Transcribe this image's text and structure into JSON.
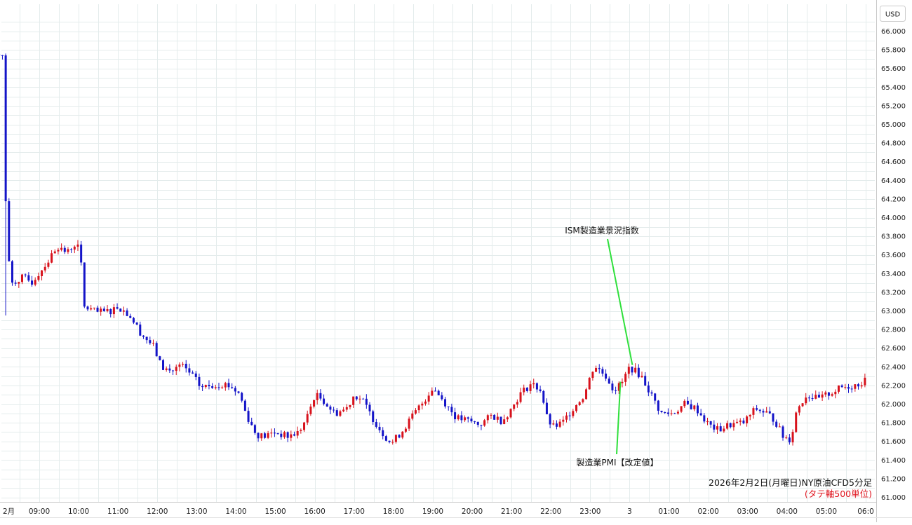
{
  "chart_data": {
    "type": "candlestick",
    "currency_label": "USD",
    "caption": "2026年2月2日(月曜日)NY原油CFD5分足",
    "caption_sub": "(タテ軸500単位)",
    "ylim": [
      61.0,
      66.1
    ],
    "y_ticks": [
      "66.000",
      "65.800",
      "65.600",
      "65.400",
      "65.200",
      "65.000",
      "64.800",
      "64.600",
      "64.400",
      "64.200",
      "64.000",
      "63.800",
      "63.600",
      "63.400",
      "63.200",
      "63.000",
      "62.800",
      "62.600",
      "62.400",
      "62.200",
      "62.000",
      "61.800",
      "61.600",
      "61.400",
      "61.200",
      "61.000"
    ],
    "x_ticks": [
      "2月",
      "09:00",
      "10:00",
      "11:00",
      "12:00",
      "13:00",
      "14:00",
      "15:00",
      "16:00",
      "17:00",
      "18:00",
      "19:00",
      "20:00",
      "21:00",
      "22:00",
      "23:00",
      "3",
      "01:00",
      "02:00",
      "03:00",
      "04:00",
      "05:00",
      "06:0"
    ],
    "x_tick_hours": [
      8,
      9,
      10,
      11,
      12,
      13,
      14,
      15,
      16,
      17,
      18,
      19,
      20,
      21,
      22,
      23,
      24,
      25,
      26,
      27,
      28,
      29,
      30
    ],
    "x_range_hours": [
      7.86,
      30.08
    ],
    "annotations": [
      {
        "text": "ISM製造業景況指数",
        "hour": 24.0,
        "price": 62.42
      },
      {
        "text": "製造業PMI【改定値】",
        "hour": 23.75,
        "price": 62.24
      }
    ],
    "colors": {
      "up": "#d8121c",
      "down": "#1414c8",
      "grid": "#e4ecec",
      "annotation_line": "#2fe03c",
      "caption_sub": "#e0141e"
    },
    "anchors": [
      [
        7.98,
        65.75
      ],
      [
        8.1,
        65.74
      ],
      [
        8.16,
        63.72
      ],
      [
        8.3,
        63.3
      ],
      [
        8.6,
        63.36
      ],
      [
        8.8,
        63.3
      ],
      [
        9.25,
        63.55
      ],
      [
        9.45,
        63.7
      ],
      [
        9.7,
        63.62
      ],
      [
        9.9,
        63.72
      ],
      [
        10.05,
        63.65
      ],
      [
        10.1,
        63.05
      ],
      [
        10.5,
        62.98
      ],
      [
        10.8,
        63.0
      ],
      [
        11.0,
        63.05
      ],
      [
        11.3,
        62.95
      ],
      [
        11.6,
        62.75
      ],
      [
        11.9,
        62.62
      ],
      [
        12.1,
        62.4
      ],
      [
        12.35,
        62.35
      ],
      [
        12.6,
        62.42
      ],
      [
        12.9,
        62.3
      ],
      [
        13.1,
        62.18
      ],
      [
        13.4,
        62.2
      ],
      [
        13.7,
        62.22
      ],
      [
        13.9,
        62.18
      ],
      [
        14.1,
        62.1
      ],
      [
        14.25,
        61.9
      ],
      [
        14.5,
        61.68
      ],
      [
        14.7,
        61.65
      ],
      [
        15.0,
        61.7
      ],
      [
        15.3,
        61.65
      ],
      [
        15.6,
        61.7
      ],
      [
        15.8,
        61.85
      ],
      [
        16.0,
        62.1
      ],
      [
        16.2,
        62.05
      ],
      [
        16.5,
        61.9
      ],
      [
        16.8,
        61.95
      ],
      [
        17.0,
        62.1
      ],
      [
        17.2,
        62.05
      ],
      [
        17.4,
        61.9
      ],
      [
        17.7,
        61.7
      ],
      [
        17.95,
        61.58
      ],
      [
        18.2,
        61.7
      ],
      [
        18.5,
        61.88
      ],
      [
        18.8,
        62.05
      ],
      [
        19.0,
        62.18
      ],
      [
        19.3,
        62.02
      ],
      [
        19.6,
        61.85
      ],
      [
        19.9,
        61.82
      ],
      [
        20.2,
        61.78
      ],
      [
        20.5,
        61.88
      ],
      [
        20.75,
        61.82
      ],
      [
        21.0,
        61.95
      ],
      [
        21.2,
        62.1
      ],
      [
        21.5,
        62.22
      ],
      [
        21.75,
        62.15
      ],
      [
        21.9,
        61.85
      ],
      [
        22.05,
        61.75
      ],
      [
        22.3,
        61.8
      ],
      [
        22.55,
        61.95
      ],
      [
        22.85,
        62.1
      ],
      [
        23.1,
        62.42
      ],
      [
        23.4,
        62.3
      ],
      [
        23.6,
        62.15
      ],
      [
        23.8,
        62.22
      ],
      [
        24.0,
        62.4
      ],
      [
        24.3,
        62.3
      ],
      [
        24.55,
        62.1
      ],
      [
        24.8,
        61.9
      ],
      [
        25.1,
        61.9
      ],
      [
        25.4,
        62.0
      ],
      [
        25.7,
        61.95
      ],
      [
        26.0,
        61.78
      ],
      [
        26.25,
        61.72
      ],
      [
        26.55,
        61.78
      ],
      [
        26.9,
        61.8
      ],
      [
        27.2,
        61.95
      ],
      [
        27.5,
        61.9
      ],
      [
        27.7,
        61.82
      ],
      [
        27.9,
        61.65
      ],
      [
        28.1,
        61.62
      ],
      [
        28.25,
        61.95
      ],
      [
        28.5,
        62.1
      ],
      [
        28.8,
        62.05
      ],
      [
        29.1,
        62.12
      ],
      [
        29.4,
        62.18
      ],
      [
        29.7,
        62.2
      ],
      [
        30.0,
        62.25
      ]
    ]
  }
}
